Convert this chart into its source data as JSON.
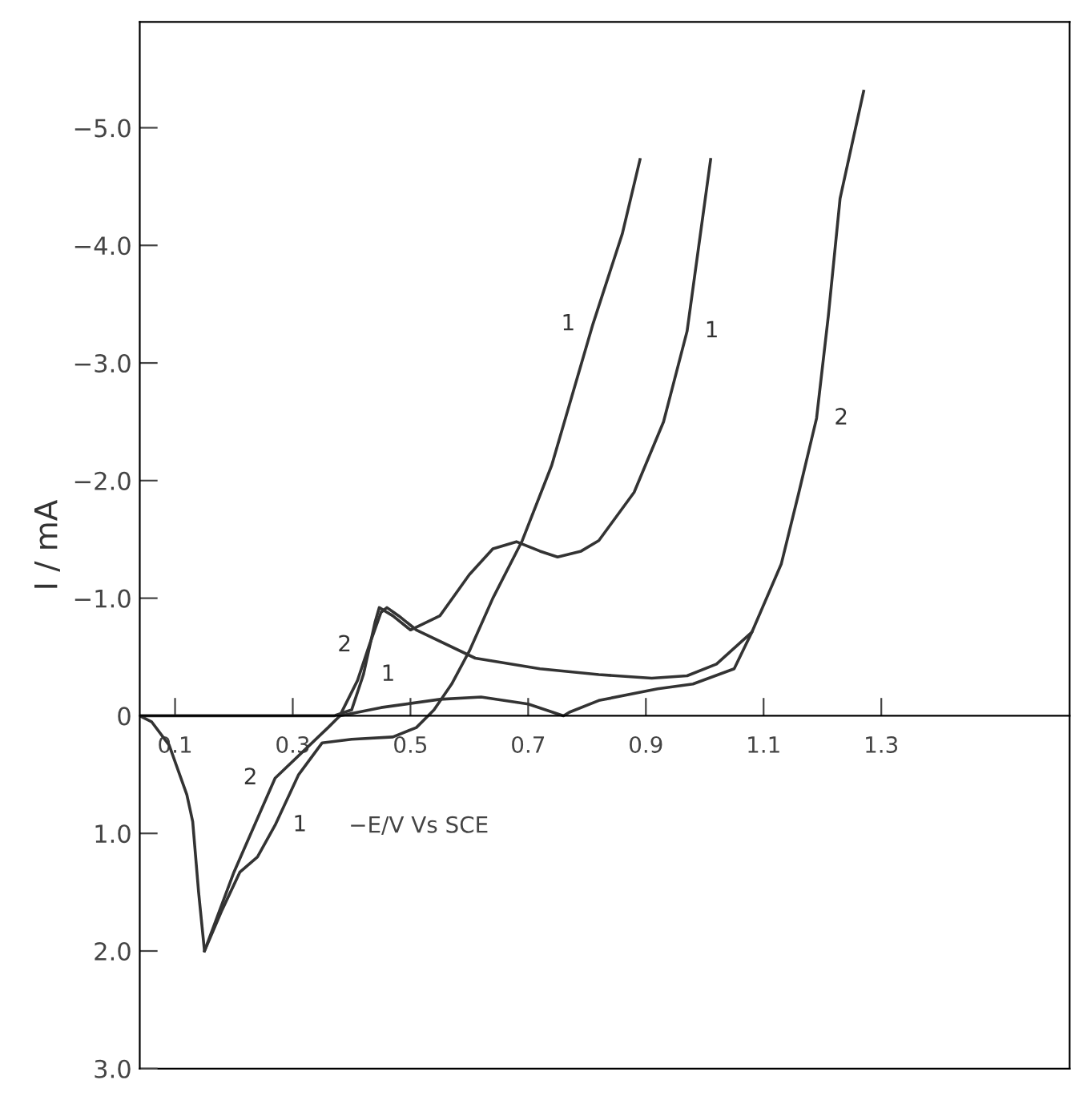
{
  "chart_data": {
    "type": "line",
    "xlabel": "−E/V Vs SCE",
    "ylabel": "I / mA",
    "xlim": [
      0.04,
      1.62
    ],
    "ylim": [
      3.0,
      -5.9
    ],
    "xticks": [
      0.1,
      0.3,
      0.5,
      0.7,
      0.9,
      1.1,
      1.3
    ],
    "yticks": [
      {
        "value": -5,
        "label": "−5.0"
      },
      {
        "value": -4,
        "label": "−4.0"
      },
      {
        "value": -3,
        "label": "−3.0"
      },
      {
        "value": -2,
        "label": "−2.0"
      },
      {
        "value": -1,
        "label": "−1.0"
      },
      0,
      {
        "value": 1,
        "label": "1.0"
      },
      {
        "value": 2,
        "label": "2.0"
      },
      {
        "value": 3,
        "label": "3.0"
      }
    ],
    "grid": false,
    "legend": false,
    "marker": "none",
    "line_style": "solid",
    "series": [
      {
        "color": "#333333",
        "x": [
          0.04,
          0.1,
          0.2,
          0.3,
          0.37,
          0.4,
          0.42,
          0.44,
          0.447,
          0.47,
          0.5,
          0.55,
          0.6,
          0.64,
          0.68,
          0.72,
          0.75,
          0.79,
          0.82,
          0.88,
          0.93,
          0.97,
          0.99,
          1.01
        ],
        "values": [
          0,
          0,
          0,
          0,
          0,
          -0.05,
          -0.35,
          -0.8,
          -0.92,
          -0.85,
          -0.73,
          -0.85,
          -1.2,
          -1.42,
          -1.48,
          -1.4,
          -1.35,
          -1.4,
          -1.49,
          -1.9,
          -2.5,
          -3.27,
          -4.0,
          -4.73
        ]
      },
      {
        "color": "#333333",
        "x": [
          0.89,
          0.86,
          0.81,
          0.74,
          0.69,
          0.64,
          0.6,
          0.57,
          0.54,
          0.51,
          0.47,
          0.4,
          0.35,
          0.31,
          0.27,
          0.24,
          0.21,
          0.18,
          0.15,
          0.14,
          0.13,
          0.12,
          0.09,
          0.06,
          0.04
        ],
        "values": [
          -4.73,
          -4.1,
          -3.33,
          -2.13,
          -1.49,
          -1.0,
          -0.55,
          -0.27,
          -0.05,
          0.1,
          0.18,
          0.2,
          0.23,
          0.5,
          0.93,
          1.2,
          1.33,
          1.65,
          2.0,
          1.5,
          0.9,
          0.67,
          0.25,
          0.05,
          0
        ]
      },
      {
        "color": "#333333",
        "x": [
          0.38,
          0.41,
          0.43,
          0.45,
          0.46,
          0.48,
          0.51,
          0.61,
          0.72,
          0.82,
          0.91,
          0.97,
          1.02,
          1.08,
          1.13,
          1.16,
          1.19,
          1.21,
          1.23,
          1.27
        ],
        "values": [
          0,
          -0.3,
          -0.6,
          -0.88,
          -0.92,
          -0.85,
          -0.73,
          -0.49,
          -0.4,
          -0.35,
          -0.32,
          -0.34,
          -0.44,
          -0.71,
          -1.29,
          -1.9,
          -2.53,
          -3.4,
          -4.4,
          -5.31
        ]
      },
      {
        "color": "#333333",
        "x": [
          1.08,
          1.05,
          0.98,
          0.92,
          0.82,
          0.77,
          0.76,
          0.7,
          0.62,
          0.55,
          0.45,
          0.38,
          0.36,
          0.27,
          0.2,
          0.15
        ],
        "values": [
          -0.71,
          -0.4,
          -0.27,
          -0.23,
          -0.13,
          -0.03,
          0,
          -0.1,
          -0.16,
          -0.14,
          -0.07,
          0,
          0.1,
          0.53,
          1.33,
          2.0
        ]
      }
    ],
    "annotations": [
      {
        "text": "1",
        "x": 0.42,
        "y": -0.35
      },
      {
        "text": "2",
        "x": 0.43,
        "y": -0.6
      },
      {
        "text": "2",
        "x": 0.27,
        "y": 0.53
      },
      {
        "text": "1",
        "x": 0.27,
        "y": 0.93
      },
      {
        "text": "1",
        "x": 0.81,
        "y": -3.33
      },
      {
        "text": "1",
        "x": 0.97,
        "y": -3.27
      },
      {
        "text": "2",
        "x": 1.19,
        "y": -2.53
      }
    ]
  }
}
